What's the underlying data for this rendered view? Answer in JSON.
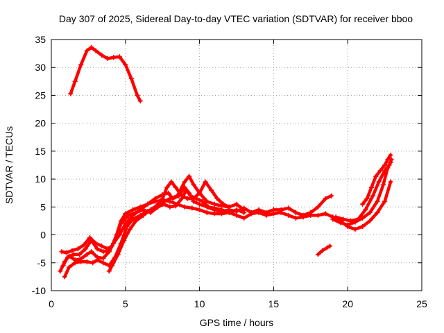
{
  "chart_data": {
    "type": "scatter",
    "title": "Day 307 of 2025, Sidereal Day-to-day VTEC variation (SDTVAR) for receiver bboo",
    "xlabel": "GPS time / hours",
    "ylabel": "SDTVAR / TECUs",
    "xlim": [
      0,
      25
    ],
    "ylim": [
      -10,
      35
    ],
    "xticks": [
      0,
      5,
      10,
      15,
      20,
      25
    ],
    "yticks": [
      -10,
      -5,
      0,
      5,
      10,
      15,
      20,
      25,
      30,
      35
    ],
    "grid": true,
    "marker": "+",
    "color": "#ff0000",
    "series": [
      {
        "name": "track-a",
        "points": [
          [
            1.3,
            25.3
          ],
          [
            1.6,
            27.5
          ],
          [
            2.0,
            30.5
          ],
          [
            2.4,
            33.0
          ],
          [
            2.7,
            33.6
          ],
          [
            3.0,
            33.0
          ],
          [
            3.4,
            32.2
          ],
          [
            3.8,
            31.6
          ],
          [
            4.2,
            31.8
          ],
          [
            4.6,
            31.9
          ],
          [
            5.0,
            30.5
          ],
          [
            5.4,
            28.0
          ],
          [
            5.8,
            25.0
          ],
          [
            6.0,
            24.0
          ]
        ]
      },
      {
        "name": "track-b",
        "points": [
          [
            0.6,
            -6.5
          ],
          [
            0.9,
            -4.8
          ],
          [
            1.2,
            -3.8
          ],
          [
            1.6,
            -4.5
          ],
          [
            2.0,
            -4.3
          ],
          [
            2.4,
            -3.5
          ],
          [
            2.7,
            -3.0
          ],
          [
            3.1,
            -4.0
          ],
          [
            3.5,
            -4.2
          ],
          [
            3.9,
            -3.0
          ],
          [
            4.2,
            -1.5
          ],
          [
            4.6,
            0.0
          ],
          [
            5.0,
            2.0
          ],
          [
            5.5,
            3.5
          ],
          [
            6.0,
            4.5
          ],
          [
            6.5,
            5.5
          ],
          [
            7.0,
            6.0
          ],
          [
            7.5,
            6.2
          ],
          [
            8.0,
            6.0
          ],
          [
            8.5,
            5.5
          ],
          [
            9.0,
            5.0
          ],
          [
            9.5,
            4.8
          ],
          [
            10.0,
            4.5
          ],
          [
            10.5,
            4.0
          ],
          [
            11.0,
            3.8
          ],
          [
            11.5,
            3.8
          ],
          [
            12.0,
            4.0
          ],
          [
            12.5,
            3.5
          ],
          [
            13.0,
            3.0
          ],
          [
            13.5,
            3.8
          ],
          [
            14.0,
            4.0
          ],
          [
            14.5,
            3.5
          ],
          [
            15.0,
            3.8
          ],
          [
            15.5,
            4.0
          ],
          [
            16.0,
            3.5
          ],
          [
            16.5,
            3.0
          ],
          [
            17.0,
            3.2
          ],
          [
            17.5,
            3.5
          ],
          [
            18.0,
            3.5
          ],
          [
            18.5,
            3.8
          ],
          [
            19.0,
            3.2
          ],
          [
            19.5,
            2.5
          ],
          [
            20.0,
            1.5
          ],
          [
            20.5,
            1.0
          ],
          [
            21.0,
            1.5
          ],
          [
            21.5,
            2.5
          ],
          [
            22.0,
            4.0
          ],
          [
            22.5,
            6.0
          ],
          [
            22.9,
            9.5
          ]
        ]
      },
      {
        "name": "track-c",
        "points": [
          [
            0.7,
            -3.0
          ],
          [
            1.0,
            -3.2
          ],
          [
            1.4,
            -2.8
          ],
          [
            1.8,
            -2.5
          ],
          [
            2.2,
            -1.8
          ],
          [
            2.6,
            -0.5
          ],
          [
            3.0,
            -1.5
          ],
          [
            3.4,
            -2.0
          ],
          [
            3.8,
            -2.5
          ],
          [
            4.1,
            -2.0
          ],
          [
            4.4,
            0.0
          ],
          [
            4.7,
            2.5
          ],
          [
            5.0,
            3.8
          ],
          [
            5.5,
            4.5
          ],
          [
            6.0,
            5.0
          ],
          [
            6.5,
            5.5
          ],
          [
            7.0,
            6.5
          ],
          [
            7.5,
            7.2
          ],
          [
            7.9,
            7.5
          ],
          [
            8.2,
            6.5
          ],
          [
            8.6,
            7.0
          ],
          [
            9.0,
            8.5
          ],
          [
            9.3,
            7.5
          ],
          [
            9.6,
            6.0
          ],
          [
            10.0,
            5.5
          ],
          [
            10.5,
            5.0
          ],
          [
            11.0,
            4.5
          ],
          [
            11.5,
            4.2
          ],
          [
            12.0,
            4.5
          ],
          [
            12.5,
            4.2
          ],
          [
            13.0,
            4.8
          ],
          [
            13.5,
            4.0
          ],
          [
            14.0,
            4.5
          ],
          [
            14.5,
            4.0
          ],
          [
            15.0,
            4.5
          ],
          [
            15.5,
            4.5
          ],
          [
            16.0,
            4.8
          ],
          [
            16.5,
            4.0
          ],
          [
            17.0,
            3.5
          ],
          [
            17.5,
            4.0
          ],
          [
            18.0,
            5.0
          ],
          [
            18.5,
            6.5
          ],
          [
            18.9,
            7.0
          ]
        ]
      },
      {
        "name": "track-d",
        "points": [
          [
            0.8,
            -5.5
          ],
          [
            1.1,
            -4.0
          ],
          [
            1.5,
            -3.5
          ],
          [
            1.9,
            -3.5
          ],
          [
            2.3,
            -2.5
          ],
          [
            2.7,
            -1.0
          ],
          [
            3.1,
            -2.5
          ],
          [
            3.5,
            -3.0
          ],
          [
            3.9,
            -2.8
          ],
          [
            4.3,
            -1.0
          ],
          [
            4.7,
            2.0
          ],
          [
            5.2,
            3.5
          ],
          [
            5.7,
            4.0
          ],
          [
            6.2,
            4.5
          ],
          [
            6.7,
            4.0
          ],
          [
            7.2,
            5.0
          ],
          [
            7.6,
            5.5
          ],
          [
            8.0,
            5.0
          ],
          [
            8.4,
            5.2
          ],
          [
            8.8,
            6.5
          ],
          [
            9.1,
            8.0
          ],
          [
            9.4,
            7.0
          ],
          [
            9.8,
            6.5
          ],
          [
            10.2,
            6.0
          ],
          [
            10.6,
            5.0
          ],
          [
            11.0,
            4.8
          ],
          [
            11.5,
            4.5
          ],
          [
            12.0,
            4.0
          ],
          [
            12.5,
            4.5
          ],
          [
            13.0,
            4.0
          ]
        ]
      },
      {
        "name": "track-e",
        "points": [
          [
            0.9,
            -7.5
          ],
          [
            1.2,
            -5.8
          ],
          [
            1.6,
            -5.0
          ],
          [
            2.0,
            -4.8
          ],
          [
            2.4,
            -4.8
          ],
          [
            2.8,
            -5.0
          ],
          [
            3.1,
            -4.5
          ],
          [
            3.5,
            -5.0
          ],
          [
            3.9,
            -5.5
          ],
          [
            4.3,
            -4.0
          ],
          [
            4.7,
            -1.5
          ],
          [
            5.1,
            1.5
          ],
          [
            5.5,
            2.8
          ],
          [
            6.0,
            3.5
          ],
          [
            6.5,
            4.2
          ],
          [
            7.0,
            5.0
          ],
          [
            7.5,
            5.8
          ],
          [
            8.0,
            6.5
          ],
          [
            8.5,
            7.0
          ],
          [
            9.0,
            9.5
          ],
          [
            9.3,
            10.5
          ],
          [
            9.6,
            9.0
          ],
          [
            10.0,
            7.5
          ],
          [
            10.5,
            6.0
          ],
          [
            11.0,
            5.5
          ],
          [
            11.5,
            5.2
          ],
          [
            12.0,
            5.0
          ]
        ]
      },
      {
        "name": "track-f",
        "points": [
          [
            3.9,
            -6.5
          ],
          [
            4.1,
            -5.5
          ],
          [
            4.5,
            -3.5
          ],
          [
            4.9,
            -1.0
          ],
          [
            5.3,
            1.0
          ],
          [
            5.7,
            2.5
          ],
          [
            6.2,
            3.5
          ],
          [
            6.7,
            4.5
          ],
          [
            7.1,
            5.2
          ],
          [
            7.5,
            6.5
          ],
          [
            7.8,
            8.5
          ],
          [
            8.1,
            9.5
          ],
          [
            8.4,
            8.5
          ],
          [
            8.8,
            7.0
          ],
          [
            9.2,
            6.5
          ],
          [
            9.6,
            6.5
          ],
          [
            10.0,
            7.5
          ],
          [
            10.4,
            9.5
          ],
          [
            10.8,
            8.0
          ],
          [
            11.2,
            6.5
          ],
          [
            11.6,
            5.5
          ],
          [
            12.0,
            5.0
          ],
          [
            12.5,
            5.5
          ],
          [
            13.0,
            4.5
          ]
        ]
      },
      {
        "name": "track-g",
        "points": [
          [
            18.0,
            -3.5
          ],
          [
            18.3,
            -2.8
          ],
          [
            18.6,
            -2.3
          ],
          [
            18.8,
            -2.0
          ]
        ]
      },
      {
        "name": "track-h",
        "points": [
          [
            19.0,
            2.8
          ],
          [
            19.5,
            2.2
          ],
          [
            20.0,
            1.8
          ],
          [
            20.5,
            2.3
          ],
          [
            21.0,
            3.0
          ],
          [
            21.5,
            4.0
          ],
          [
            22.0,
            6.0
          ],
          [
            22.4,
            9.0
          ],
          [
            22.7,
            12.0
          ],
          [
            22.9,
            13.0
          ]
        ]
      },
      {
        "name": "track-i",
        "points": [
          [
            19.2,
            3.2
          ],
          [
            19.7,
            2.8
          ],
          [
            20.2,
            2.5
          ],
          [
            20.7,
            2.8
          ],
          [
            21.2,
            4.5
          ],
          [
            21.7,
            7.0
          ],
          [
            22.1,
            9.5
          ],
          [
            22.5,
            11.5
          ],
          [
            22.8,
            12.5
          ],
          [
            22.95,
            13.5
          ]
        ]
      },
      {
        "name": "track-j",
        "points": [
          [
            21.0,
            5.5
          ],
          [
            21.3,
            6.5
          ],
          [
            21.6,
            8.5
          ],
          [
            21.9,
            10.5
          ],
          [
            22.2,
            11.5
          ],
          [
            22.5,
            12.5
          ],
          [
            22.7,
            13.5
          ],
          [
            22.9,
            14.3
          ]
        ]
      }
    ]
  }
}
